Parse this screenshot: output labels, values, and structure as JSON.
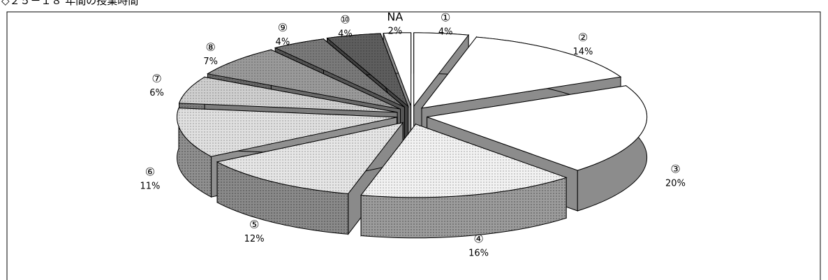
{
  "chart_data": {
    "type": "pie3d",
    "title": "◇２５－１８ 年間の授業時間",
    "categories": [
      "①",
      "②",
      "③",
      "④",
      "⑤",
      "⑥",
      "⑦",
      "⑧",
      "⑨",
      "⑩",
      "NA"
    ],
    "values": [
      4,
      14,
      20,
      16,
      12,
      11,
      6,
      7,
      4,
      4,
      2
    ],
    "value_labels": [
      "4%",
      "14%",
      "20%",
      "16%",
      "12%",
      "11%",
      "6%",
      "7%",
      "4%",
      "4%",
      "2%"
    ],
    "colors": [
      "#ffffff",
      "#ffffff",
      "#ffffff",
      "#f2f2f2",
      "#e6e6e6",
      "#e0e0e0",
      "#cfcfcf",
      "#9a9a9a",
      "#7a7a7a",
      "#5e5e5e",
      "#ffffff"
    ],
    "side_colors": [
      "#8c8c8c",
      "#8c8c8c",
      "#8c8c8c",
      "#9c9c9c",
      "#8a8a8a",
      "#909090",
      "#7d7d7d",
      "#6a6a6a",
      "#555555",
      "#444444",
      "#8c8c8c"
    ]
  }
}
